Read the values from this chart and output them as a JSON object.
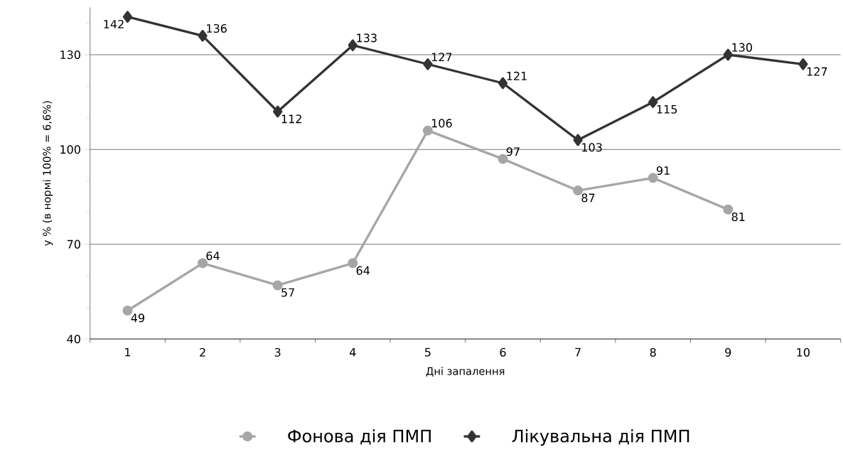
{
  "chart_data": {
    "type": "line",
    "xlabel": "Дні запалення",
    "ylabel": "у % (в нормі 100% = 6,6%)",
    "categories": [
      "1",
      "2",
      "3",
      "4",
      "5",
      "6",
      "7",
      "8",
      "9",
      "10"
    ],
    "series": [
      {
        "name": "Фонова дія ПМП",
        "color": "#a6a6a6",
        "marker": "circle",
        "values": [
          49,
          64,
          57,
          64,
          106,
          97,
          87,
          91,
          81,
          null
        ]
      },
      {
        "name": "Лікувальна дія ПМП",
        "color": "#333333",
        "marker": "diamond",
        "values": [
          142,
          136,
          112,
          133,
          127,
          121,
          103,
          115,
          130,
          127
        ]
      }
    ],
    "ylim": [
      40,
      145
    ],
    "yticks": [
      40,
      {
        "value": 50,
        "label": null
      },
      {
        "value": 60,
        "label": null
      },
      70,
      {
        "value": 80,
        "label": null
      },
      {
        "value": 90,
        "label": null
      },
      100,
      {
        "value": 110,
        "label": null
      },
      {
        "value": 120,
        "label": null
      },
      130,
      {
        "value": 140,
        "label": null
      }
    ],
    "grid": "y",
    "legend": "bottom",
    "data_labels": true,
    "line_style": "solid"
  }
}
